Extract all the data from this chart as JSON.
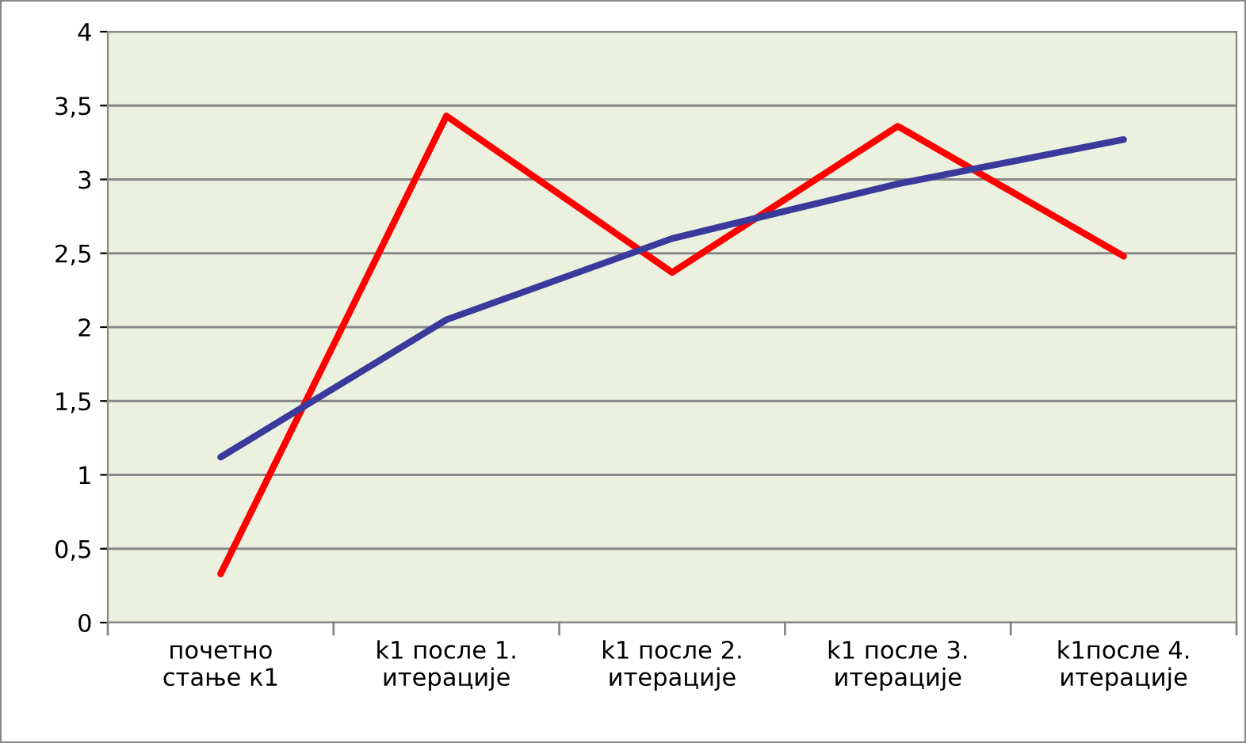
{
  "chart_data": {
    "type": "line",
    "categories": [
      "почетно стање к1",
      "k1 после 1. итерације",
      "k1 после 2. итерације",
      "k1 после 3. итерације",
      "k1после 4. итерације"
    ],
    "series": [
      {
        "color": "#ff0000",
        "values": [
          0.33,
          3.43,
          2.37,
          3.36,
          2.48
        ]
      },
      {
        "color": "#3a3a9c",
        "values": [
          1.12,
          2.05,
          2.6,
          2.97,
          3.27
        ]
      }
    ],
    "ylim": [
      0,
      4
    ],
    "yticks": [
      0,
      {
        "value": 0.5,
        "label": "0,5"
      },
      1,
      {
        "value": 1.5,
        "label": "1,5"
      },
      2,
      {
        "value": 2.5,
        "label": "2,5"
      },
      3,
      {
        "value": 3.5,
        "label": "3,5"
      },
      4
    ],
    "grid": "y",
    "marker": "none",
    "line_style": "solid",
    "legend": false
  }
}
